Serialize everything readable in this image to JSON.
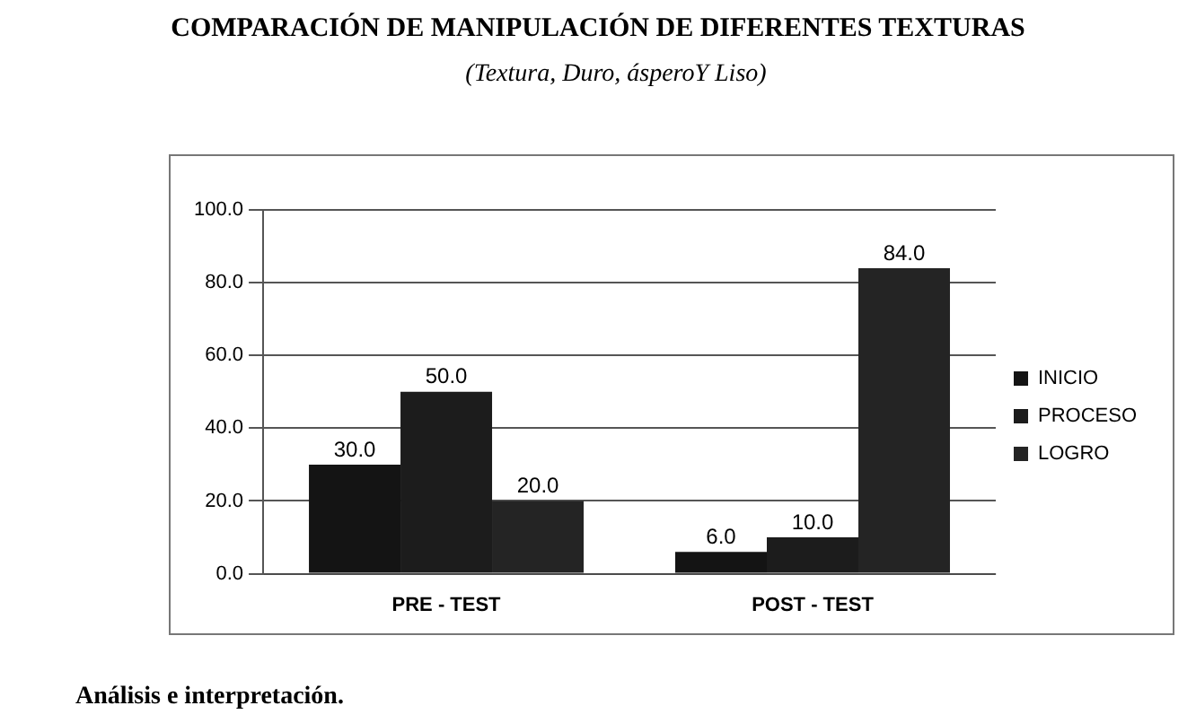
{
  "chart_data": {
    "type": "bar",
    "title": "COMPARACIÓN DE MANIPULACIÓN DE  DIFERENTES TEXTURAS",
    "subtitle": "(Textura, Duro,  ásperoY  Liso)",
    "annotations": [
      "Análisis e interpretación."
    ],
    "categories": [
      "PRE - TEST",
      "POST - TEST"
    ],
    "series": [
      {
        "name": "INICIO",
        "color": "#141414",
        "values": [
          30,
          6
        ],
        "value_labels": [
          "30.0",
          "6.0"
        ]
      },
      {
        "name": "PROCESO",
        "color": "#1c1c1c",
        "values": [
          50,
          10
        ],
        "value_labels": [
          "50.0",
          "10.0"
        ]
      },
      {
        "name": "LOGRO",
        "color": "#242424",
        "values": [
          20,
          84
        ],
        "value_labels": [
          "20.0",
          "84.0"
        ]
      }
    ],
    "ylim": [
      0,
      100
    ],
    "yticks": [
      {
        "value": 0,
        "label": "0.0"
      },
      {
        "value": 20,
        "label": "20.0"
      },
      {
        "value": 40,
        "label": "40.0"
      },
      {
        "value": 60,
        "label": "60.0"
      },
      {
        "value": 80,
        "label": "80.0"
      },
      {
        "value": 100,
        "label": "100.0"
      }
    ],
    "grid": "y",
    "legend": "right"
  }
}
